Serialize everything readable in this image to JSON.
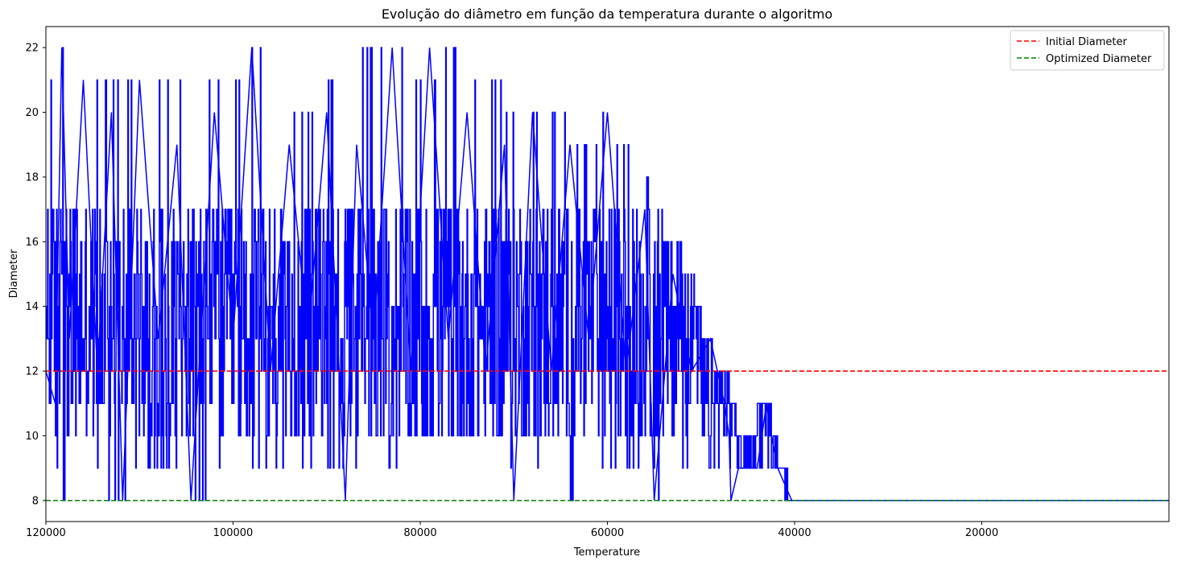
{
  "chart_data": {
    "type": "line",
    "title": "Evolução do diâmetro em função da temperatura durante o algoritmo",
    "xlabel": "Temperature",
    "ylabel": "Diameter",
    "xlim": [
      120000,
      0
    ],
    "ylim": [
      7.35,
      22.65
    ],
    "x_inverted": true,
    "xticks": [
      120000,
      100000,
      80000,
      60000,
      40000,
      20000
    ],
    "xtick_labels": [
      "120000",
      "100000",
      "80000",
      "60000",
      "40000",
      "20000"
    ],
    "yticks": [
      8,
      10,
      12,
      14,
      16,
      18,
      20,
      22
    ],
    "ytick_labels": [
      "8",
      "10",
      "12",
      "14",
      "16",
      "18",
      "20",
      "22"
    ],
    "grid": false,
    "legend": {
      "placement": "top-right"
    },
    "series": [
      {
        "name": "",
        "color": "#0000ff",
        "style": "solid",
        "description_x": "temperature",
        "x": [
          120000,
          119000,
          118300,
          117500,
          116000,
          114500,
          113000,
          111800,
          110000,
          108000,
          106000,
          104500,
          102000,
          100000,
          98000,
          96000,
          94000,
          92000,
          90000,
          88000,
          86800,
          85000,
          83000,
          81000,
          79000,
          77000,
          75000,
          73000,
          71000,
          70000,
          68000,
          66000,
          64000,
          62000,
          60000,
          58000,
          56000,
          55000,
          53000,
          51000,
          49000,
          47500,
          47000,
          46800,
          46000,
          44000,
          43000,
          42500,
          41800,
          40300,
          30000,
          20000,
          10000,
          0
        ],
        "y": [
          12,
          11,
          22,
          13,
          21,
          12,
          20,
          8,
          21,
          13,
          19,
          8,
          20,
          13,
          22,
          12,
          19,
          13,
          20,
          8,
          19,
          13,
          22,
          12,
          22,
          13,
          20,
          12,
          19,
          8,
          20,
          12,
          19,
          13,
          20,
          12,
          17,
          8,
          15,
          12,
          13,
          11,
          10,
          8,
          9,
          9,
          11,
          10,
          9,
          8,
          8,
          8,
          8,
          8
        ],
        "max_envelope_x": [
          120000,
          118300,
          117000,
          113000,
          110000,
          105000,
          100000,
          98000,
          93000,
          90000,
          88000,
          85000,
          83000,
          80000,
          76500,
          72000,
          70000,
          68000,
          65000,
          62000,
          60000,
          58000,
          56000,
          54500,
          53000,
          51000,
          50000,
          49000,
          48000,
          47000,
          46000,
          45000,
          43000,
          42000,
          40300,
          0
        ],
        "max_envelope_y": [
          20,
          22,
          21,
          21,
          21,
          21,
          21,
          22,
          20,
          21,
          21,
          22,
          22,
          21,
          22,
          21,
          20,
          20,
          20,
          19,
          20,
          19,
          18,
          17,
          16,
          15,
          14,
          13,
          12,
          12,
          10,
          10,
          11,
          10,
          8,
          8
        ],
        "min_envelope_x": [
          120000,
          119000,
          118500,
          115000,
          112000,
          110000,
          106000,
          104500,
          100000,
          95000,
          90000,
          87000,
          86500,
          80000,
          75000,
          70000,
          69500,
          67000,
          66500,
          60000,
          57000,
          55000,
          54500,
          52000,
          50000,
          48000,
          47000,
          46800,
          46000,
          43000,
          41800,
          40300,
          0
        ],
        "min_envelope_y": [
          9,
          9,
          8,
          9,
          8,
          9,
          9,
          8,
          9,
          9,
          9,
          9,
          8,
          10,
          10,
          9,
          8,
          9,
          8,
          9,
          9,
          9,
          8,
          9,
          9,
          9,
          9,
          8,
          9,
          9,
          9,
          8,
          8
        ]
      },
      {
        "name": "Initial Diameter",
        "color": "#ff0000",
        "style": "dashed",
        "y": 12
      },
      {
        "name": "Optimized Diameter",
        "color": "#008000",
        "style": "dashed",
        "y": 8
      }
    ]
  }
}
